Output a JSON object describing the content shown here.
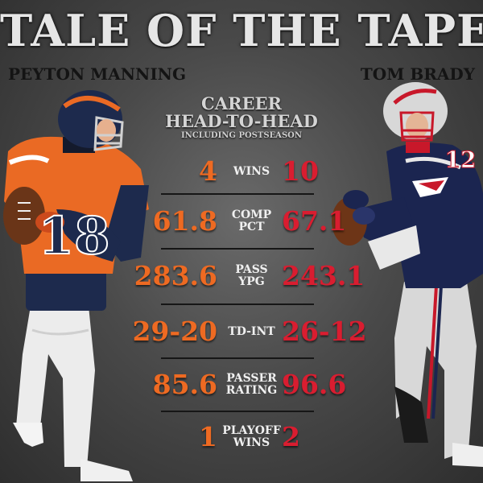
{
  "title": "TALE OF THE TAPE",
  "players": {
    "left": "PEYTON MANNING",
    "right": "TOM BRADY"
  },
  "subheading": {
    "line1": "CAREER",
    "line2": "HEAD-TO-HEAD",
    "line3": "INCLUDING POSTSEASON"
  },
  "colors": {
    "left_accent": "#ee6a22",
    "right_accent": "#d91d30",
    "broncos_navy": "#1d2a4d",
    "patriots_navy": "#1b2550"
  },
  "stats": [
    {
      "left": "4",
      "label_line1": "WINS",
      "label_line2": "",
      "right": "10"
    },
    {
      "left": "61.8",
      "label_line1": "COMP",
      "label_line2": "PCT",
      "right": "67.1"
    },
    {
      "left": "283.6",
      "label_line1": "PASS",
      "label_line2": "YPG",
      "right": "243.1"
    },
    {
      "left": "29-20",
      "label_line1": "TD-INT",
      "label_line2": "",
      "right": "26-12"
    },
    {
      "left": "85.6",
      "label_line1": "PASSER",
      "label_line2": "RATING",
      "right": "96.6"
    },
    {
      "left": "1",
      "label_line1": "PLAYOFF",
      "label_line2": "WINS",
      "right": "2"
    }
  ],
  "jersey": {
    "left_number": "18",
    "right_number": "12"
  }
}
